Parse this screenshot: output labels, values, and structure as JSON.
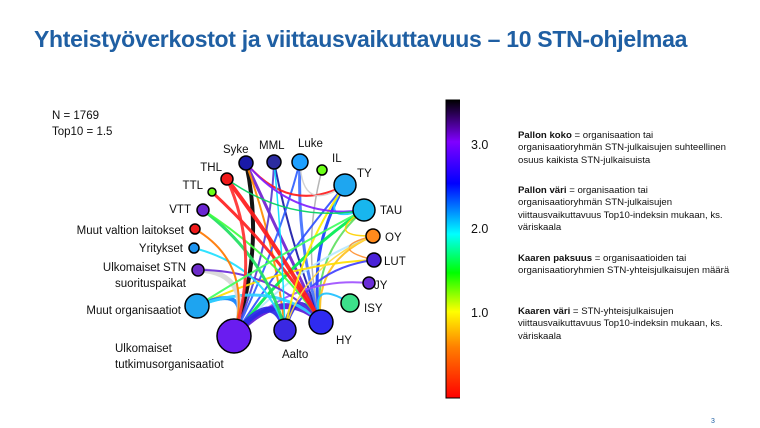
{
  "title": "Yhteistyöverkostot ja viittausvaikuttavuus – 10 STN-ohjelmaa",
  "stats": {
    "n": "N = 1769",
    "top10": "Top10 = 1.5"
  },
  "colorbar": {
    "ticks": [
      "3.0",
      "2.0",
      "1.0"
    ],
    "tick_values": [
      3.0,
      2.0,
      1.0
    ],
    "range": [
      0.3,
      3.6
    ],
    "colors": [
      "#ff0000",
      "#ff7f00",
      "#ffff00",
      "#00ff00",
      "#00ffff",
      "#0000ff",
      "#8000ff",
      "#000000"
    ]
  },
  "legend": [
    {
      "term": "Pallon koko",
      "text": " = organisaation tai organisaatioryhmän STN-julkaisujen suhteellinen osuus kaikista STN-julkaisuista"
    },
    {
      "term": "Pallon väri",
      "text": " = organisaation tai organisaatioryhmän STN-julkaisujen viittausvaikuttavuus Top10-indeksin mukaan, ks. väriskaala"
    },
    {
      "term": "Kaaren paksuus",
      "text": " = organisaatioiden tai organisaatioryhmien STN-yhteisjulkaisujen määrä"
    },
    {
      "term": "Kaaren väri",
      "text": " = STN-yhteisjulkaisujen viittausvaikuttavuus Top10-indeksin mukaan, ks. väriskaala"
    }
  ],
  "nodes": [
    {
      "id": "syke",
      "label": "Syke",
      "color": "#1a1aa8"
    },
    {
      "id": "mml",
      "label": "MML",
      "color": "#2c2ca0"
    },
    {
      "id": "luke",
      "label": "Luke",
      "color": "#1ea0ff"
    },
    {
      "id": "il",
      "label": "IL",
      "color": "#6cff18"
    },
    {
      "id": "ty",
      "label": "TY",
      "color": "#1ea6f0"
    },
    {
      "id": "tau",
      "label": "TAU",
      "color": "#18b6ee"
    },
    {
      "id": "oy",
      "label": "OY",
      "color": "#ff8a1c"
    },
    {
      "id": "lut",
      "label": "LUT",
      "color": "#4a22d8"
    },
    {
      "id": "jy",
      "label": "JY",
      "color": "#6a2cd8"
    },
    {
      "id": "isy",
      "label": "ISY",
      "color": "#3ce08a"
    },
    {
      "id": "hy",
      "label": "HY",
      "color": "#2f2bf0"
    },
    {
      "id": "aalto",
      "label": "Aalto",
      "color": "#3a28e2"
    },
    {
      "id": "ulk_tutk",
      "label": "Ulkomaiset\ntutkimusorganisaatiot",
      "color": "#6a1cf0"
    },
    {
      "id": "muut_org",
      "label": "Muut organisaatiot",
      "color": "#1ea4f0"
    },
    {
      "id": "ulk_stn",
      "label": "Ulkomaiset STN\nsuorituspaikat",
      "color": "#6d2cc8"
    },
    {
      "id": "yritykset",
      "label": "Yritykset",
      "color": "#1e94f0"
    },
    {
      "id": "muut_valtion",
      "label": "Muut valtion laitokset",
      "color": "#ee1a1a"
    },
    {
      "id": "vtt",
      "label": "VTT",
      "color": "#6a26d0"
    },
    {
      "id": "ttl",
      "label": "TTL",
      "color": "#6cff18"
    },
    {
      "id": "thl",
      "label": "THL",
      "color": "#f01a1a"
    }
  ],
  "edges": [
    {
      "from": "syke",
      "to": "ulk_tutk",
      "color": "#000000",
      "weight": 4
    },
    {
      "from": "syke",
      "to": "hy",
      "color": "#7020d0",
      "weight": 3
    },
    {
      "from": "syke",
      "to": "aalto",
      "color": "#ff8a00",
      "weight": 2
    },
    {
      "from": "mml",
      "to": "hy",
      "color": "#1a1aa8",
      "weight": 2
    },
    {
      "from": "mml",
      "to": "ulk_tutk",
      "color": "#5a3cd0",
      "weight": 2
    },
    {
      "from": "luke",
      "to": "hy",
      "color": "#4070ff",
      "weight": 3
    },
    {
      "from": "luke",
      "to": "ulk_tutk",
      "color": "#3060ff",
      "weight": 2
    },
    {
      "from": "il",
      "to": "hy",
      "color": "#b0b0b0",
      "weight": 1.5
    },
    {
      "from": "ty",
      "to": "hy",
      "color": "#1a40ff",
      "weight": 3
    },
    {
      "from": "ty",
      "to": "ulk_tutk",
      "color": "#3050ff",
      "weight": 2
    },
    {
      "from": "tau",
      "to": "ulk_tutk",
      "color": "#00ee50",
      "weight": 3
    },
    {
      "from": "tau",
      "to": "hy",
      "color": "#60e060",
      "weight": 2
    },
    {
      "from": "oy",
      "to": "ulk_tutk",
      "color": "#b8e8ff",
      "weight": 2
    },
    {
      "from": "oy",
      "to": "hy",
      "color": "#ffc020",
      "weight": 2
    },
    {
      "from": "lut",
      "to": "muut_org",
      "color": "#ffe000",
      "weight": 2
    },
    {
      "from": "lut",
      "to": "aalto",
      "color": "#4040ff",
      "weight": 2
    },
    {
      "from": "jy",
      "to": "ulk_tutk",
      "color": "#a050ff",
      "weight": 2
    },
    {
      "from": "isy",
      "to": "hy",
      "color": "#20c0ff",
      "weight": 2
    },
    {
      "from": "hy",
      "to": "ulk_tutk",
      "color": "#5a18d8",
      "weight": 6
    },
    {
      "from": "hy",
      "to": "aalto",
      "color": "#2828e0",
      "weight": 5
    },
    {
      "from": "aalto",
      "to": "ulk_tutk",
      "color": "#2a2ae6",
      "weight": 6
    },
    {
      "from": "muut_org",
      "to": "ulk_tutk",
      "color": "#1080ff",
      "weight": 4
    },
    {
      "from": "muut_org",
      "to": "hy",
      "color": "#30d0ff",
      "weight": 3
    },
    {
      "from": "ulk_stn",
      "to": "ulk_tutk",
      "color": "#d7d7d7",
      "weight": 5
    },
    {
      "from": "ulk_stn",
      "to": "hy",
      "color": "#6a2cd8",
      "weight": 2
    },
    {
      "from": "yritykset",
      "to": "aalto",
      "color": "#20e0ff",
      "weight": 2
    },
    {
      "from": "muut_valtion",
      "to": "ulk_tutk",
      "color": "#ff7700",
      "weight": 2
    },
    {
      "from": "vtt",
      "to": "aalto",
      "color": "#20e060",
      "weight": 3
    },
    {
      "from": "vtt",
      "to": "hy",
      "color": "#40ff40",
      "weight": 2
    },
    {
      "from": "ttl",
      "to": "hy",
      "color": "#ff2020",
      "weight": 3
    },
    {
      "from": "thl",
      "to": "hy",
      "color": "#ff1a1a",
      "weight": 4
    },
    {
      "from": "thl",
      "to": "ulk_tutk",
      "color": "#ff3030",
      "weight": 3
    },
    {
      "from": "syke",
      "to": "ty",
      "color": "#ff1a1a",
      "weight": 2
    },
    {
      "from": "luke",
      "to": "ty",
      "color": "#d0d0d0",
      "weight": 1.5
    },
    {
      "from": "ty",
      "to": "tau",
      "color": "#20d0ff",
      "weight": 2
    },
    {
      "from": "tau",
      "to": "oy",
      "color": "#ffd000",
      "weight": 1.5
    },
    {
      "from": "oy",
      "to": "lut",
      "color": "#ff9030",
      "weight": 1.5
    },
    {
      "from": "ty",
      "to": "aalto",
      "color": "#ffee00",
      "weight": 2
    },
    {
      "from": "tau",
      "to": "muut_org",
      "color": "#40ff60",
      "weight": 2
    },
    {
      "from": "oy",
      "to": "aalto",
      "color": "#ffd840",
      "weight": 1.5
    },
    {
      "from": "mml",
      "to": "aalto",
      "color": "#00e0ff",
      "weight": 1.5
    },
    {
      "from": "syke",
      "to": "tau",
      "color": "#8020ff",
      "weight": 2
    },
    {
      "from": "thl",
      "to": "tau",
      "color": "#00d060",
      "weight": 1.5
    }
  ]
}
